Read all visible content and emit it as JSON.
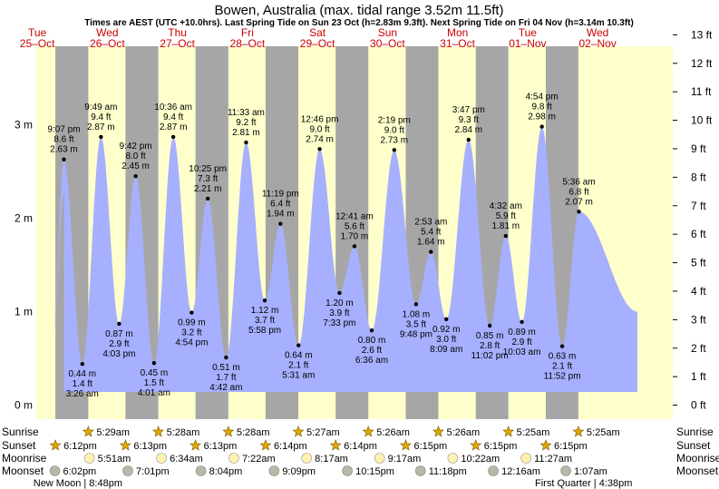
{
  "chart_data": {
    "type": "area",
    "title": "Bowen, Australia (max. tidal range 3.52m 11.5ft)",
    "subtitle": "Times are AEST (UTC +10.0hrs). Last Spring Tide on Sun 23 Oct (h=2.83m 9.3ft). Next Spring Tide on Fri 04 Nov (h=3.14m 10.3ft)",
    "ylim_m": [
      -0.15,
      3.84
    ],
    "y_left_ticks": [
      {
        "v": 0,
        "label": "0 m"
      },
      {
        "v": 1,
        "label": "1 m"
      },
      {
        "v": 2,
        "label": "2 m"
      },
      {
        "v": 3,
        "label": "3 m"
      }
    ],
    "y_right_ticks": [
      "0 ft",
      "1 ft",
      "2 ft",
      "3 ft",
      "4 ft",
      "5 ft",
      "6 ft",
      "7 ft",
      "8 ft",
      "9 ft",
      "10 ft",
      "11 ft",
      "12 ft",
      "13 ft"
    ],
    "grid": false,
    "days": [
      {
        "dow": "Tue",
        "date": "25–Oct"
      },
      {
        "dow": "Wed",
        "date": "26–Oct"
      },
      {
        "dow": "Thu",
        "date": "27–Oct"
      },
      {
        "dow": "Fri",
        "date": "28–Oct"
      },
      {
        "dow": "Sat",
        "date": "29–Oct"
      },
      {
        "dow": "Sun",
        "date": "30–Oct"
      },
      {
        "dow": "Mon",
        "date": "31–Oct"
      },
      {
        "dow": "Tue",
        "date": "01–Nov"
      },
      {
        "dow": "Wed",
        "date": "02–Nov"
      }
    ],
    "daylight": [
      {
        "day": 0,
        "sunrise": "",
        "sunset": "18:12"
      },
      {
        "day": 1,
        "sunrise": "05:29",
        "sunset": "18:13"
      },
      {
        "day": 2,
        "sunrise": "05:28",
        "sunset": "18:13"
      },
      {
        "day": 3,
        "sunrise": "05:28",
        "sunset": "18:14"
      },
      {
        "day": 4,
        "sunrise": "05:27",
        "sunset": "18:14"
      },
      {
        "day": 5,
        "sunrise": "05:26",
        "sunset": "18:15"
      },
      {
        "day": 6,
        "sunrise": "05:26",
        "sunset": "18:15"
      },
      {
        "day": 7,
        "sunrise": "05:25",
        "sunset": "18:15"
      },
      {
        "day": 8,
        "sunrise": "05:25",
        "sunset": ""
      }
    ],
    "start_value_m": 2.27,
    "end_value_m": 1.0,
    "series": [
      {
        "values": [
          {
            "day": 0,
            "time": "21:07",
            "m": 2.63,
            "labels": [
              "9:07 pm",
              "8.6 ft",
              "2.63 m"
            ],
            "kind": "high"
          },
          {
            "day": 1,
            "time": "03:26",
            "m": 0.44,
            "labels": [
              "0.44 m",
              "1.4 ft",
              "3:26 am"
            ],
            "kind": "low"
          },
          {
            "day": 1,
            "time": "09:49",
            "m": 2.87,
            "labels": [
              "9:49 am",
              "9.4 ft",
              "2.87 m"
            ],
            "kind": "high"
          },
          {
            "day": 1,
            "time": "16:03",
            "m": 0.87,
            "labels": [
              "0.87 m",
              "2.9 ft",
              "4:03 pm"
            ],
            "kind": "low"
          },
          {
            "day": 1,
            "time": "21:42",
            "m": 2.45,
            "labels": [
              "9:42 pm",
              "8.0 ft",
              "2.45 m"
            ],
            "kind": "high"
          },
          {
            "day": 2,
            "time": "04:01",
            "m": 0.45,
            "labels": [
              "0.45 m",
              "1.5 ft",
              "4:01 am"
            ],
            "kind": "low"
          },
          {
            "day": 2,
            "time": "10:36",
            "m": 2.87,
            "labels": [
              "10:36 am",
              "9.4 ft",
              "2.87 m"
            ],
            "kind": "high"
          },
          {
            "day": 2,
            "time": "16:54",
            "m": 0.99,
            "labels": [
              "0.99 m",
              "3.2 ft",
              "4:54 pm"
            ],
            "kind": "low"
          },
          {
            "day": 2,
            "time": "22:25",
            "m": 2.21,
            "labels": [
              "10:25 pm",
              "7.3 ft",
              "2.21 m"
            ],
            "kind": "high"
          },
          {
            "day": 3,
            "time": "04:42",
            "m": 0.51,
            "labels": [
              "0.51 m",
              "1.7 ft",
              "4:42 am"
            ],
            "kind": "low"
          },
          {
            "day": 3,
            "time": "11:33",
            "m": 2.81,
            "labels": [
              "11:33 am",
              "9.2 ft",
              "2.81 m"
            ],
            "kind": "high"
          },
          {
            "day": 3,
            "time": "17:58",
            "m": 1.12,
            "labels": [
              "1.12 m",
              "3.7 ft",
              "5:58 pm"
            ],
            "kind": "low"
          },
          {
            "day": 3,
            "time": "23:19",
            "m": 1.94,
            "labels": [
              "11:19 pm",
              "6.4 ft",
              "1.94 m"
            ],
            "kind": "high"
          },
          {
            "day": 4,
            "time": "05:31",
            "m": 0.64,
            "labels": [
              "0.64 m",
              "2.1 ft",
              "5:31 am"
            ],
            "kind": "low"
          },
          {
            "day": 4,
            "time": "12:46",
            "m": 2.74,
            "labels": [
              "12:46 pm",
              "9.0 ft",
              "2.74 m"
            ],
            "kind": "high"
          },
          {
            "day": 4,
            "time": "19:33",
            "m": 1.2,
            "labels": [
              "1.20 m",
              "3.9 ft",
              "7:33 pm"
            ],
            "kind": "low"
          },
          {
            "day": 5,
            "time": "00:41",
            "m": 1.7,
            "labels": [
              "12:41 am",
              "5.6 ft",
              "1.70 m"
            ],
            "kind": "high"
          },
          {
            "day": 5,
            "time": "06:36",
            "m": 0.8,
            "labels": [
              "0.80 m",
              "2.6 ft",
              "6:36 am"
            ],
            "kind": "low"
          },
          {
            "day": 5,
            "time": "14:19",
            "m": 2.73,
            "labels": [
              "2:19 pm",
              "9.0 ft",
              "2.73 m"
            ],
            "kind": "high"
          },
          {
            "day": 5,
            "time": "21:48",
            "m": 1.08,
            "labels": [
              "1.08 m",
              "3.5 ft",
              "9:48 pm"
            ],
            "kind": "low"
          },
          {
            "day": 6,
            "time": "02:53",
            "m": 1.64,
            "labels": [
              "2:53 am",
              "5.4 ft",
              "1.64 m"
            ],
            "kind": "high"
          },
          {
            "day": 6,
            "time": "08:09",
            "m": 0.92,
            "labels": [
              "0.92 m",
              "3.0 ft",
              "8:09 am"
            ],
            "kind": "low"
          },
          {
            "day": 6,
            "time": "15:47",
            "m": 2.84,
            "labels": [
              "3:47 pm",
              "9.3 ft",
              "2.84 m"
            ],
            "kind": "high"
          },
          {
            "day": 6,
            "time": "23:02",
            "m": 0.85,
            "labels": [
              "0.85 m",
              "2.8 ft",
              "11:02 pm"
            ],
            "kind": "low"
          },
          {
            "day": 7,
            "time": "04:32",
            "m": 1.81,
            "labels": [
              "4:32 am",
              "5.9 ft",
              "1.81 m"
            ],
            "kind": "high"
          },
          {
            "day": 7,
            "time": "10:03",
            "m": 0.89,
            "labels": [
              "0.89 m",
              "2.9 ft",
              "10:03 am"
            ],
            "kind": "low"
          },
          {
            "day": 7,
            "time": "16:54",
            "m": 2.98,
            "labels": [
              "4:54 pm",
              "9.8 ft",
              "2.98 m"
            ],
            "kind": "high"
          },
          {
            "day": 7,
            "time": "23:52",
            "m": 0.63,
            "labels": [
              "0.63 m",
              "2.1 ft",
              "11:52 pm"
            ],
            "kind": "low"
          },
          {
            "day": 8,
            "time": "05:36",
            "m": 2.07,
            "labels": [
              "5:36 am",
              "6.8 ft",
              "2.07 m"
            ],
            "kind": "high"
          }
        ]
      }
    ],
    "bottom_rows": {
      "labels": [
        "Sunrise",
        "Sunset",
        "Moonrise",
        "Moonset"
      ],
      "sunrise": [
        {
          "day": 1,
          "time": "05:29",
          "text": "5:29am"
        },
        {
          "day": 2,
          "time": "05:28",
          "text": "5:28am"
        },
        {
          "day": 3,
          "time": "05:28",
          "text": "5:28am"
        },
        {
          "day": 4,
          "time": "05:27",
          "text": "5:27am"
        },
        {
          "day": 5,
          "time": "05:26",
          "text": "5:26am"
        },
        {
          "day": 6,
          "time": "05:26",
          "text": "5:26am"
        },
        {
          "day": 7,
          "time": "05:25",
          "text": "5:25am"
        },
        {
          "day": 8,
          "time": "05:25",
          "text": "5:25am"
        }
      ],
      "sunset": [
        {
          "day": 0,
          "time": "18:12",
          "text": "6:12pm"
        },
        {
          "day": 1,
          "time": "18:13",
          "text": "6:13pm"
        },
        {
          "day": 2,
          "time": "18:13",
          "text": "6:13pm"
        },
        {
          "day": 3,
          "time": "18:14",
          "text": "6:14pm"
        },
        {
          "day": 4,
          "time": "18:14",
          "text": "6:14pm"
        },
        {
          "day": 5,
          "time": "18:15",
          "text": "6:15pm"
        },
        {
          "day": 6,
          "time": "18:15",
          "text": "6:15pm"
        },
        {
          "day": 7,
          "time": "18:15",
          "text": "6:15pm"
        }
      ],
      "moonrise": [
        {
          "day": 1,
          "time": "05:51",
          "text": "5:51am"
        },
        {
          "day": 2,
          "time": "06:34",
          "text": "6:34am"
        },
        {
          "day": 3,
          "time": "07:22",
          "text": "7:22am"
        },
        {
          "day": 4,
          "time": "08:17",
          "text": "8:17am"
        },
        {
          "day": 5,
          "time": "09:17",
          "text": "9:17am"
        },
        {
          "day": 6,
          "time": "10:22",
          "text": "10:22am"
        },
        {
          "day": 7,
          "time": "11:27",
          "text": "11:27am"
        }
      ],
      "moonset": [
        {
          "day": 0,
          "time": "18:02",
          "text": "6:02pm"
        },
        {
          "day": 1,
          "time": "19:01",
          "text": "7:01pm"
        },
        {
          "day": 2,
          "time": "20:04",
          "text": "8:04pm"
        },
        {
          "day": 3,
          "time": "21:09",
          "text": "9:09pm"
        },
        {
          "day": 4,
          "time": "22:15",
          "text": "10:15pm"
        },
        {
          "day": 5,
          "time": "23:18",
          "text": "11:18pm"
        },
        {
          "day": 7,
          "time": "00:16",
          "text": "12:16am"
        },
        {
          "day": 8,
          "time": "01:07",
          "text": "1:07am"
        }
      ],
      "moon_phases": [
        {
          "text": "New Moon | 8:48pm"
        },
        {
          "text": "First Quarter | 4:38pm"
        }
      ]
    },
    "colors": {
      "day": "#ffffcc",
      "night": "#a6a6a6",
      "water": "#a6b0ff",
      "day_labels": "#cc0000",
      "sun_icon": "#e0a800",
      "moon_rise_icon": "#fff2b0",
      "moon_set_icon": "#b8b8a8"
    }
  }
}
